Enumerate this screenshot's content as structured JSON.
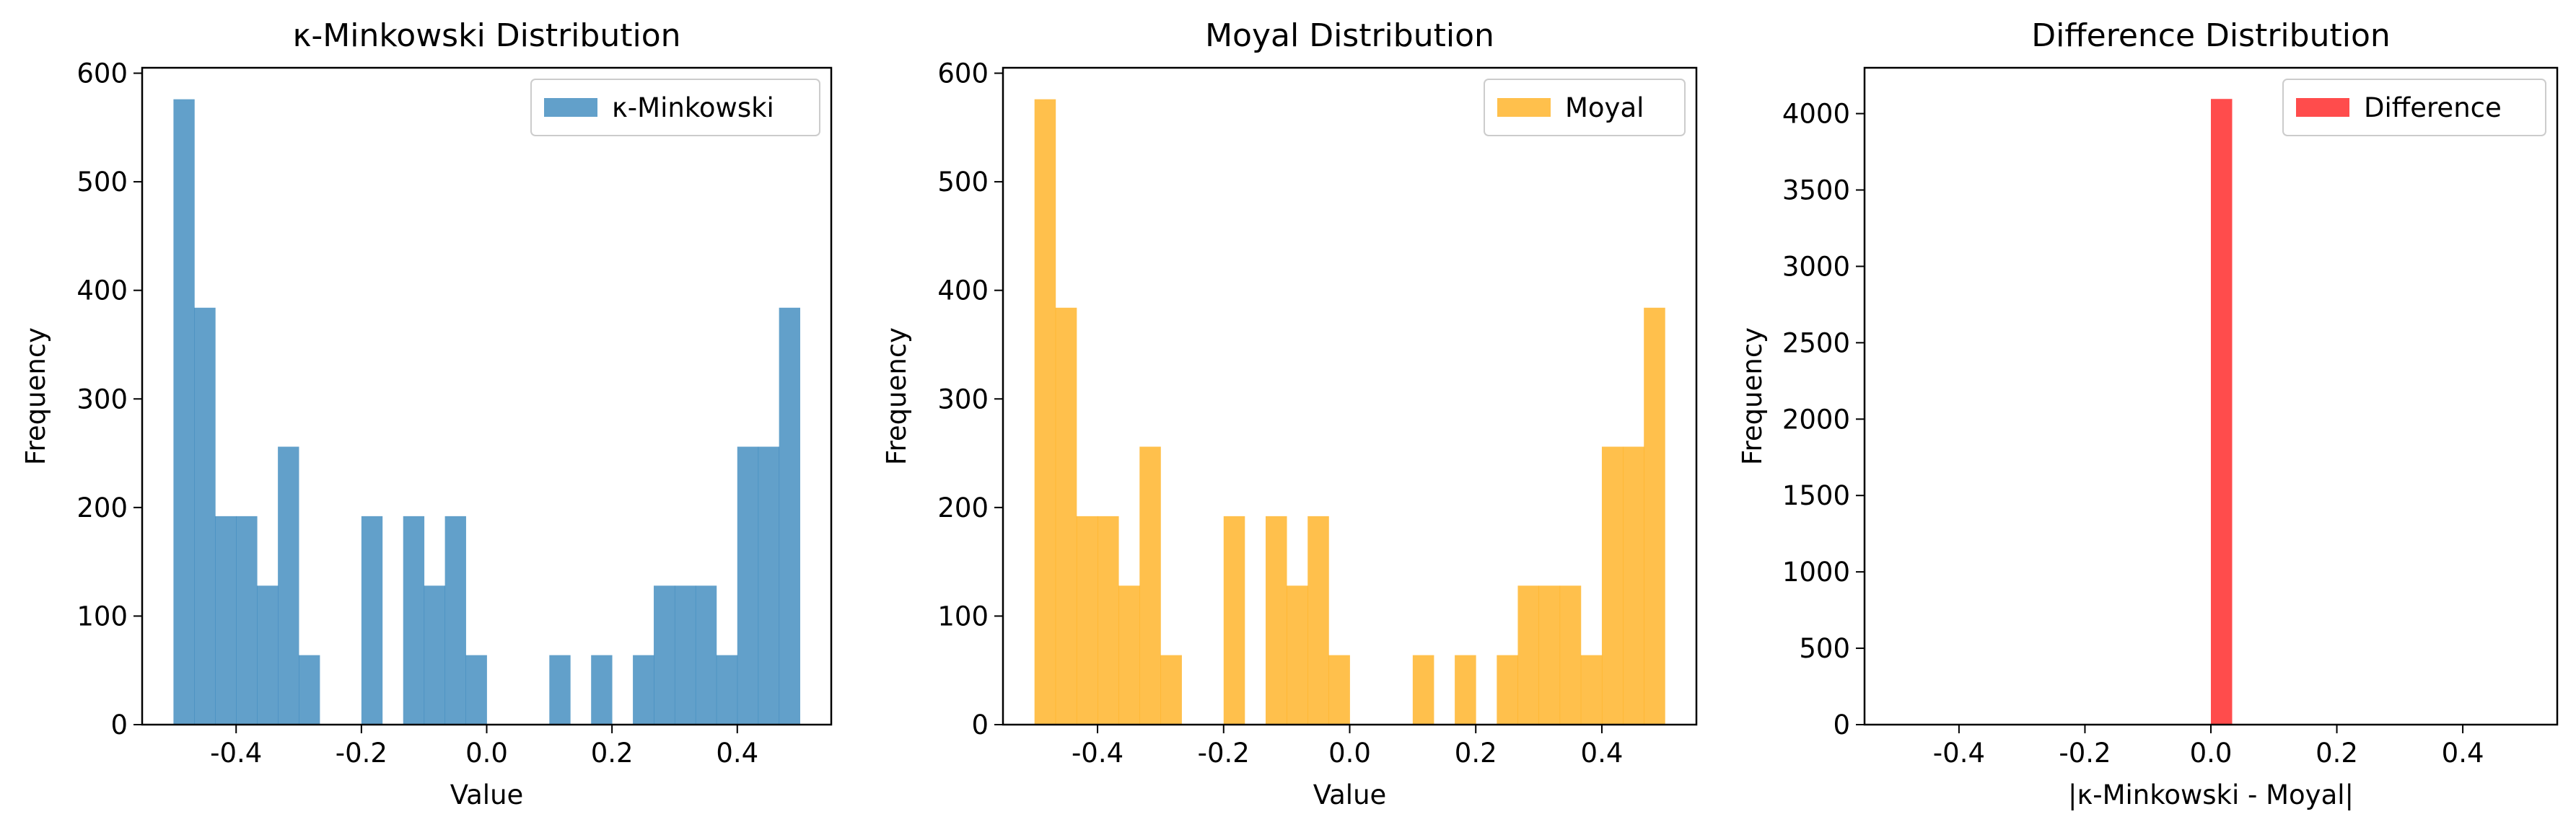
{
  "chart_data": [
    {
      "type": "bar",
      "title": "κ-Minkowski Distribution",
      "xlabel": "Value",
      "ylabel": "Frequency",
      "xlim": [
        -0.55,
        0.55
      ],
      "ylim": [
        0,
        605
      ],
      "xticks": [
        -0.4,
        -0.2,
        0.0,
        0.2,
        0.4
      ],
      "xtick_labels": [
        "-0.4",
        "-0.2",
        "0.0",
        "0.2",
        "0.4"
      ],
      "yticks": [
        0,
        100,
        200,
        300,
        400,
        500,
        600
      ],
      "ytick_labels": [
        "0",
        "100",
        "200",
        "300",
        "400",
        "500",
        "600"
      ],
      "bin_range": [
        -0.5,
        0.5
      ],
      "values": [
        576,
        384,
        192,
        192,
        128,
        256,
        64,
        0,
        0,
        192,
        0,
        192,
        128,
        192,
        64,
        0,
        0,
        0,
        64,
        0,
        64,
        0,
        64,
        128,
        128,
        128,
        64,
        256,
        256,
        384
      ],
      "color": "#1f77b4",
      "opacity": 0.7,
      "legend": "κ-Minkowski",
      "legend_placement": "top-right",
      "grid": false
    },
    {
      "type": "bar",
      "title": "Moyal Distribution",
      "xlabel": "Value",
      "ylabel": "Frequency",
      "xlim": [
        -0.55,
        0.55
      ],
      "ylim": [
        0,
        605
      ],
      "xticks": [
        -0.4,
        -0.2,
        0.0,
        0.2,
        0.4
      ],
      "xtick_labels": [
        "-0.4",
        "-0.2",
        "0.0",
        "0.2",
        "0.4"
      ],
      "yticks": [
        0,
        100,
        200,
        300,
        400,
        500,
        600
      ],
      "ytick_labels": [
        "0",
        "100",
        "200",
        "300",
        "400",
        "500",
        "600"
      ],
      "bin_range": [
        -0.5,
        0.5
      ],
      "values": [
        576,
        384,
        192,
        192,
        128,
        256,
        64,
        0,
        0,
        192,
        0,
        192,
        128,
        192,
        64,
        0,
        0,
        0,
        64,
        0,
        64,
        0,
        64,
        128,
        128,
        128,
        64,
        256,
        256,
        384
      ],
      "color": "#ffa500",
      "opacity": 0.7,
      "legend": "Moyal",
      "legend_placement": "top-right",
      "grid": false
    },
    {
      "type": "bar",
      "title": "Difference Distribution",
      "xlabel": "|κ-Minkowski - Moyal|",
      "ylabel": "Frequency",
      "xlim": [
        -0.55,
        0.55
      ],
      "ylim": [
        0,
        4300
      ],
      "xticks": [
        -0.4,
        -0.2,
        0.0,
        0.2,
        0.4
      ],
      "xtick_labels": [
        "-0.4",
        "-0.2",
        "0.0",
        "0.2",
        "0.4"
      ],
      "yticks": [
        0,
        500,
        1000,
        1500,
        2000,
        2500,
        3000,
        3500,
        4000
      ],
      "ytick_labels": [
        "0",
        "500",
        "1000",
        "1500",
        "2000",
        "2500",
        "3000",
        "3500",
        "4000"
      ],
      "bin_range": [
        -0.5,
        0.5
      ],
      "values": [
        0,
        0,
        0,
        0,
        0,
        0,
        0,
        0,
        0,
        0,
        0,
        0,
        0,
        0,
        0,
        4096,
        0,
        0,
        0,
        0,
        0,
        0,
        0,
        0,
        0,
        0,
        0,
        0,
        0,
        0
      ],
      "color": "#ff0000",
      "opacity": 0.7,
      "legend": "Difference",
      "legend_placement": "top-right",
      "grid": false
    }
  ]
}
